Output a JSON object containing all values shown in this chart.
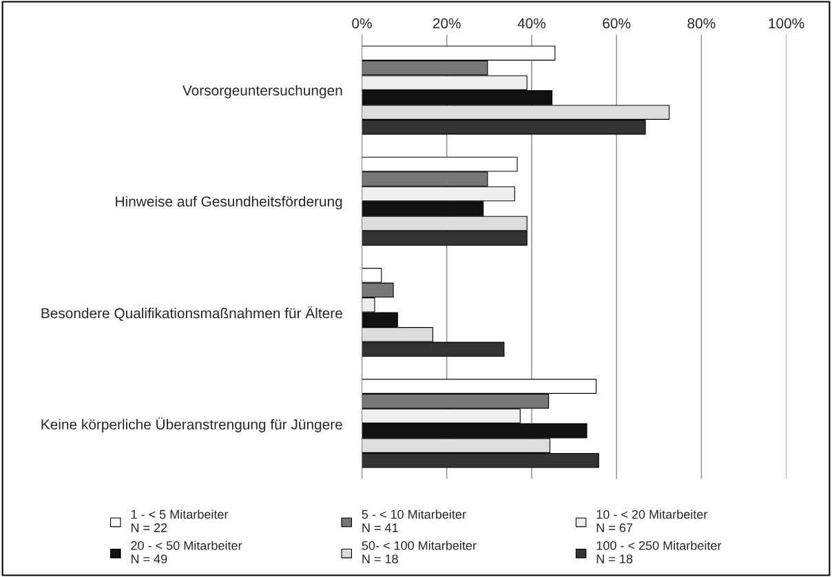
{
  "chart_data": {
    "type": "bar",
    "orientation": "horizontal",
    "categories": [
      "Vorsorgeuntersuchungen",
      "Hinweise auf Gesundheitsförderung",
      "Besondere Qualifikationsmaßnahmen für Ältere",
      "Keine körperliche Überanstrengung für Jüngere"
    ],
    "series": [
      {
        "name": "1 - < 5 Mitarbeiter\nN = 22",
        "color": "#ffffff",
        "values": [
          45.5,
          36.6,
          4.6,
          55.2
        ]
      },
      {
        "name": "5 - < 10 Mitarbeiter\nN = 41",
        "color": "#777777",
        "values": [
          29.6,
          29.6,
          7.4,
          44
        ]
      },
      {
        "name": "10 - < 20 Mitarbeiter\nN = 67",
        "color": "#eeeeee",
        "values": [
          38.9,
          36,
          3,
          37.3
        ]
      },
      {
        "name": "20 - < 50 Mitarbeiter\nN = 49",
        "color": "#111111",
        "values": [
          44.8,
          28.6,
          8.4,
          53
        ]
      },
      {
        "name": "50- < 100 Mitarbeiter\nN = 18",
        "color": "#dddddd",
        "values": [
          72.4,
          38.9,
          16.7,
          44.3
        ]
      },
      {
        "name": "100 - < 250 Mitarbeiter\nN = 18",
        "color": "#333333",
        "values": [
          66.8,
          38.9,
          33.5,
          55.8
        ]
      }
    ],
    "xlim": [
      0,
      100
    ],
    "xticks": [
      {
        "value": 0,
        "label": "0%"
      },
      {
        "value": 20,
        "label": "20%"
      },
      {
        "value": 40,
        "label": "40%"
      },
      {
        "value": 60,
        "label": "60%"
      },
      {
        "value": 80,
        "label": "80%"
      },
      {
        "value": 100,
        "label": "100%"
      }
    ],
    "grid": "x",
    "legend": "bottom"
  }
}
